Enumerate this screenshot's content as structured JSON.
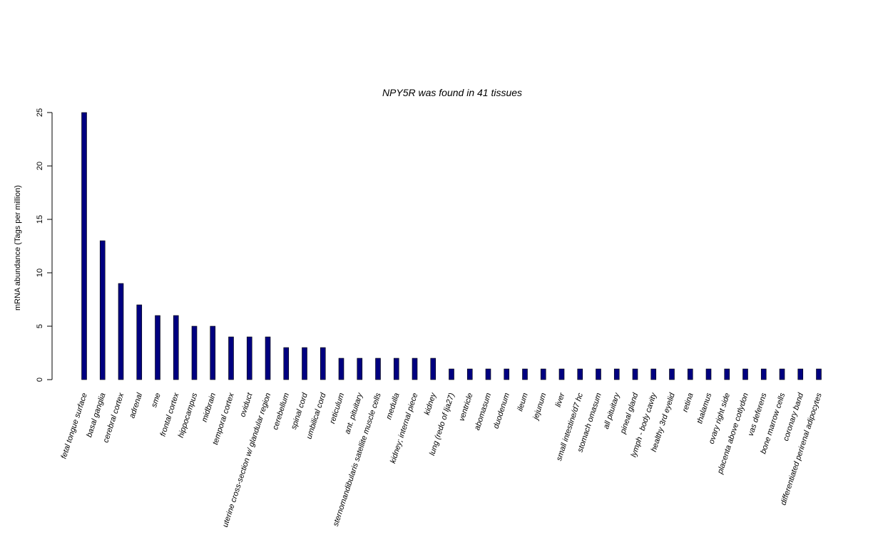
{
  "colors": {
    "bar": "#000080",
    "axis": "#000000",
    "background": "#ffffff"
  },
  "chart_data": {
    "type": "bar",
    "title": {
      "gene": "NPY5R",
      "text": "NPY5R  was found in  41  tissues",
      "count": 41
    },
    "xlabel": "",
    "ylabel": "mRNA abundance (Tags per million)",
    "ylim": [
      0,
      25
    ],
    "yticks": [
      0,
      5,
      10,
      15,
      20,
      25
    ],
    "grid": false,
    "legend": "none",
    "categories": [
      "fetal tongue surface",
      "basal ganglia",
      "cerebral cortex",
      "adrenal",
      "sme",
      "frontal cortex",
      "hippocampus",
      "midbrain",
      "temporal cortex",
      "oviduct",
      "uterine cross-section w/ glandular region",
      "cerebellum",
      "spinal cord",
      "umbilical cord",
      "reticulum",
      "ant. pituitary",
      "sternomandibularis satellite muscle cells",
      "medulla",
      "kidney; internal piece",
      "kidney",
      "lung (redo of lja27)",
      "ventricle",
      "abomasum",
      "duodenum",
      "ileum",
      "jejunum",
      "liver",
      "small intestine/d7 hc",
      "stomach omasum",
      "all pituitary",
      "pineal gland",
      "lymph - body cavity",
      "healthy 3rd eyelid",
      "retina",
      "thalamus",
      "ovary right side",
      "placenta above cotlydon",
      "vas deferens",
      "bone marrow cells",
      "coronary band",
      "differentiated perirenal adipocytes"
    ],
    "values": [
      25,
      13,
      9,
      7,
      6,
      6,
      5,
      5,
      4,
      4,
      4,
      3,
      3,
      3,
      2,
      2,
      2,
      2,
      2,
      2,
      1,
      1,
      1,
      1,
      1,
      1,
      1,
      1,
      1,
      1,
      1,
      1,
      1,
      1,
      1,
      1,
      1,
      1,
      1,
      1,
      1
    ]
  }
}
